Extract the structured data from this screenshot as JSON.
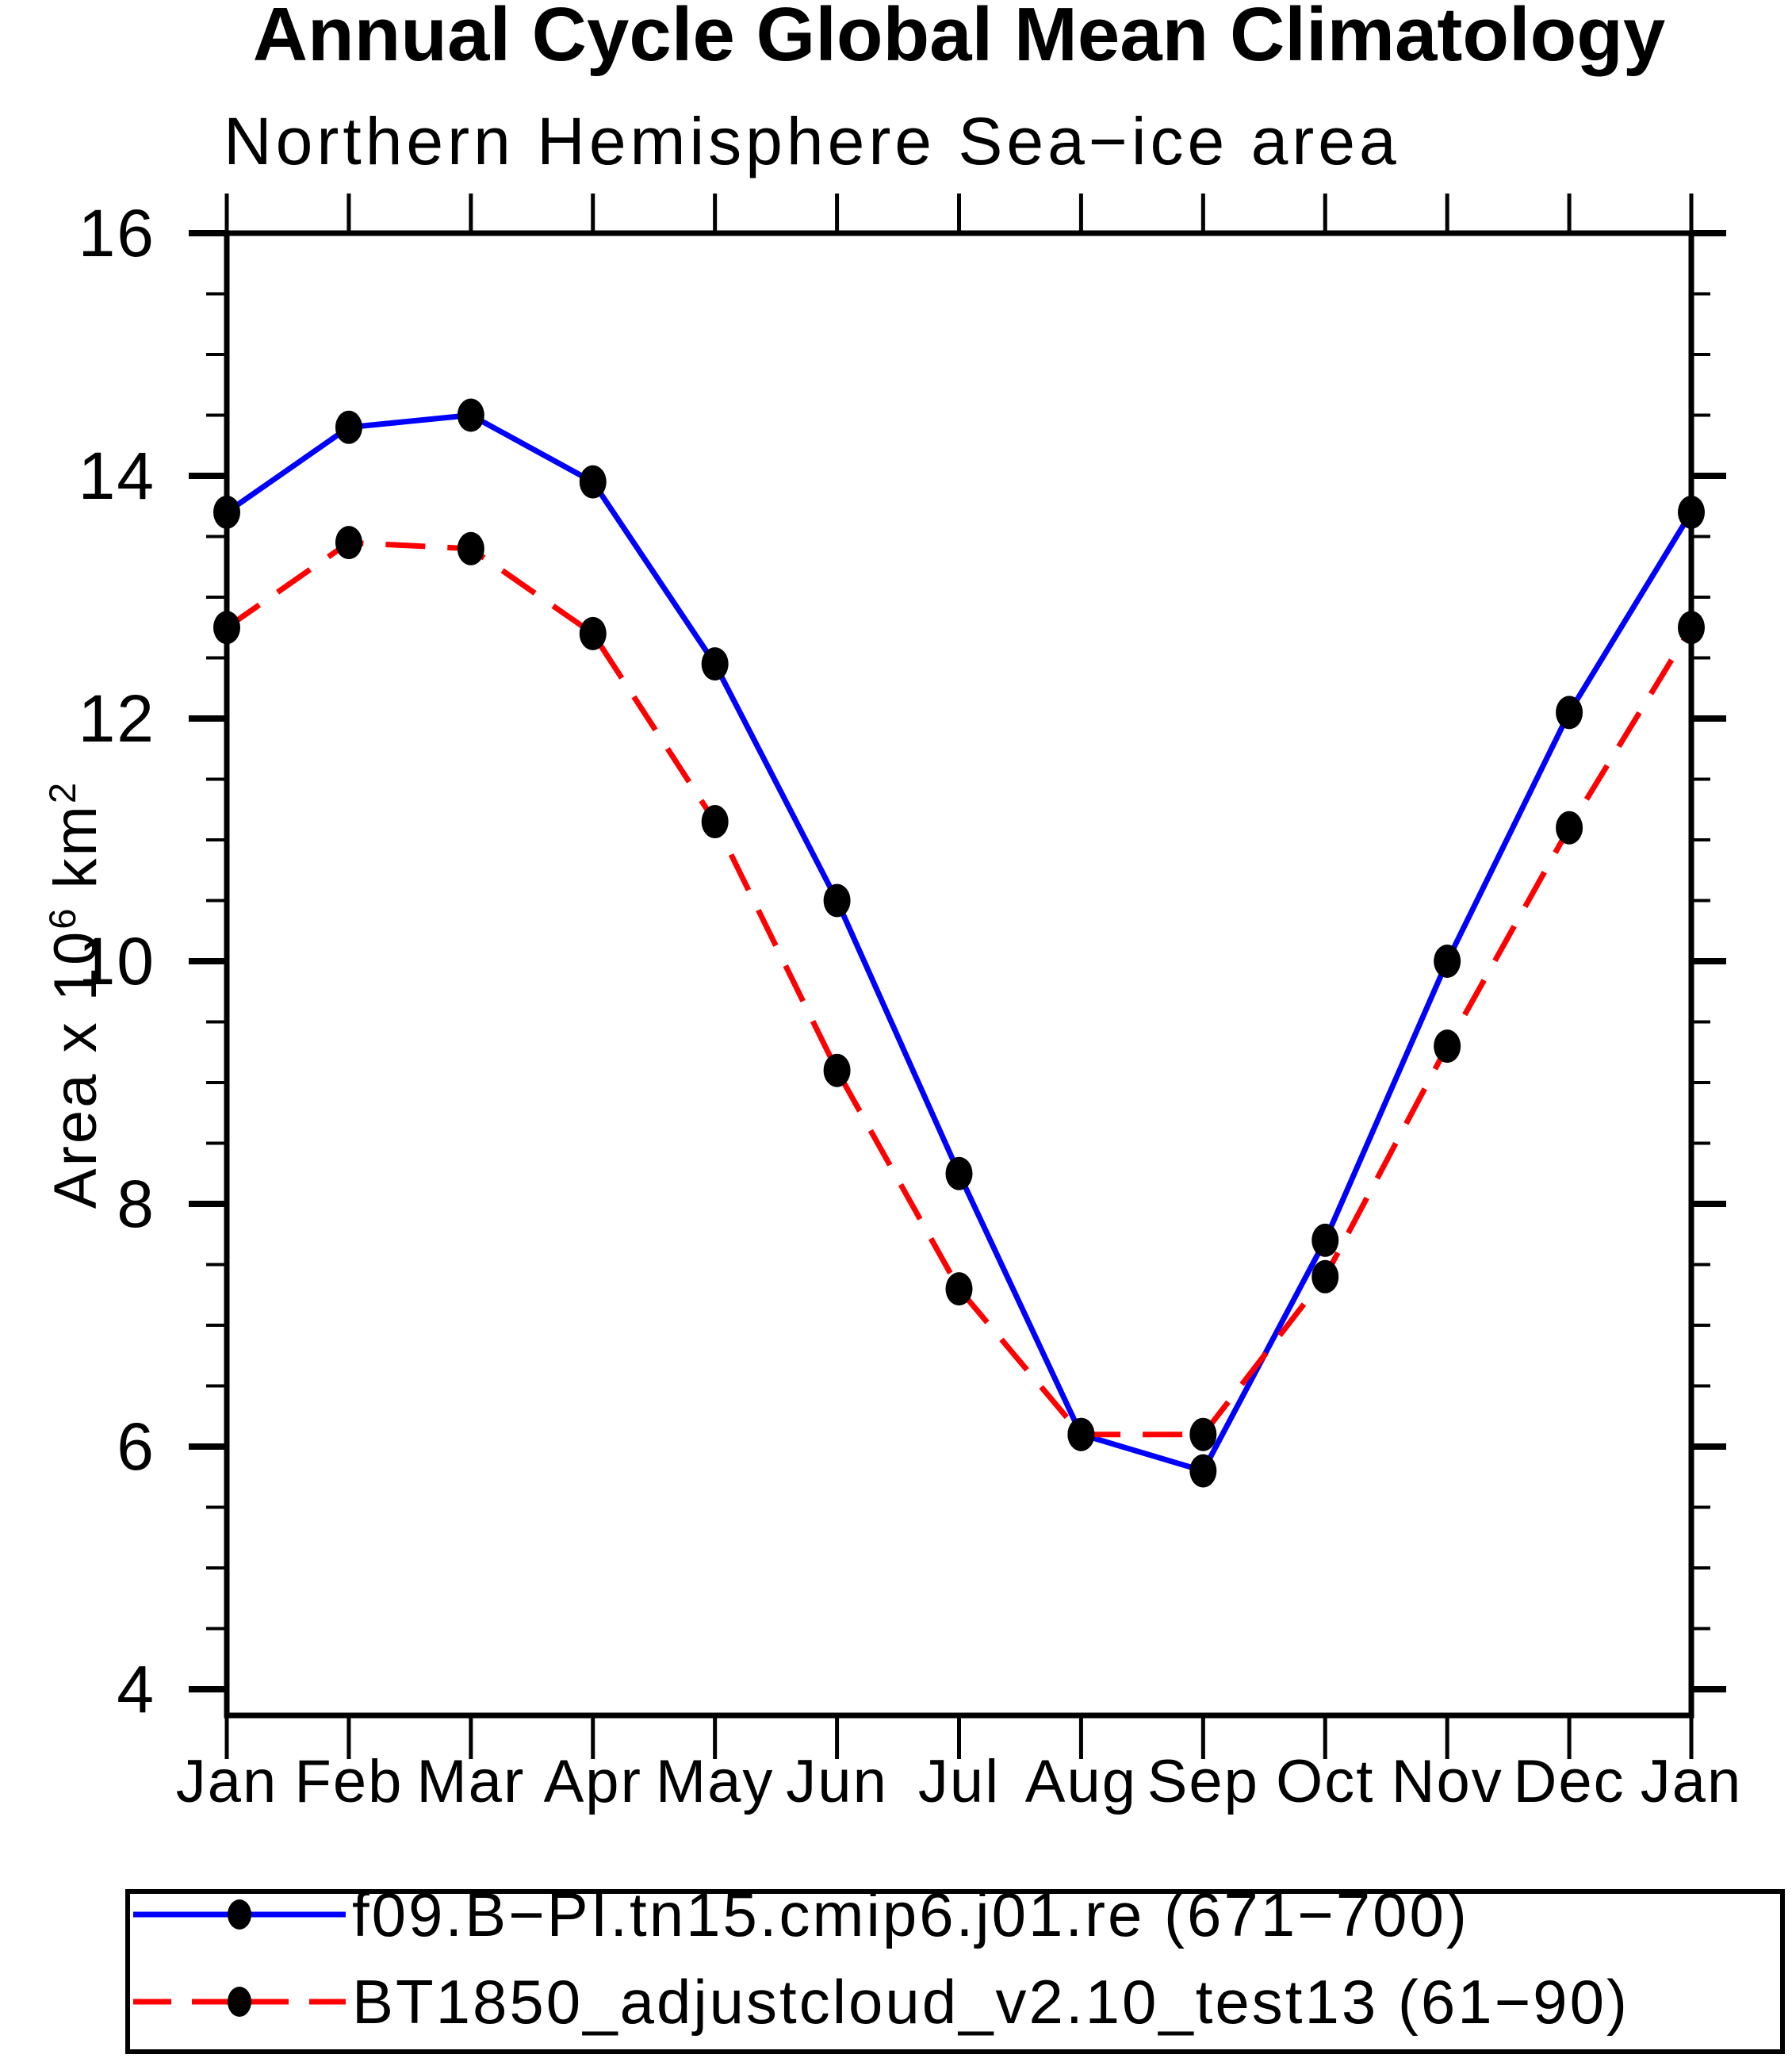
{
  "chart_data": {
    "type": "line",
    "title": "Annual Cycle Global Mean Climatology",
    "subtitle": "Northern Hemisphere Sea−ice area",
    "ylabel": "Area x 10⁶ km²",
    "ylabel_parts": {
      "base": "Area x 10",
      "exp": "6",
      "unit": " km",
      "unit_exp": "2"
    },
    "x_categories": [
      "Jan",
      "Feb",
      "Mar",
      "Apr",
      "May",
      "Jun",
      "Jul",
      "Aug",
      "Sep",
      "Oct",
      "Nov",
      "Dec",
      "Jan"
    ],
    "y_axis": {
      "min": 4,
      "max": 16,
      "major_step": 2,
      "minor_step": 0.5,
      "tick_labels": [
        "4",
        "6",
        "8",
        "10",
        "12",
        "14",
        "16"
      ]
    },
    "grid": false,
    "legend_position": "bottom",
    "axis_color": "#000000",
    "series": [
      {
        "name": "f09.B−PI.tn15.cmip6.j01.re (671−700)",
        "color": "#0000ff",
        "line_style": "solid",
        "marker": "filled-circle",
        "marker_color": "#000000",
        "values": [
          13.7,
          14.4,
          14.5,
          13.95,
          12.45,
          10.5,
          8.25,
          6.1,
          5.8,
          7.7,
          10.0,
          12.05,
          13.7
        ]
      },
      {
        "name": "BT1850_adjustcloud_v2.10_test13 (61−90)",
        "color": "#ff0000",
        "line_style": "dashed",
        "marker": "filled-circle",
        "marker_color": "#000000",
        "values": [
          12.75,
          13.45,
          13.4,
          12.7,
          11.15,
          9.1,
          7.3,
          6.1,
          6.1,
          7.4,
          9.3,
          11.1,
          12.75
        ]
      }
    ]
  }
}
